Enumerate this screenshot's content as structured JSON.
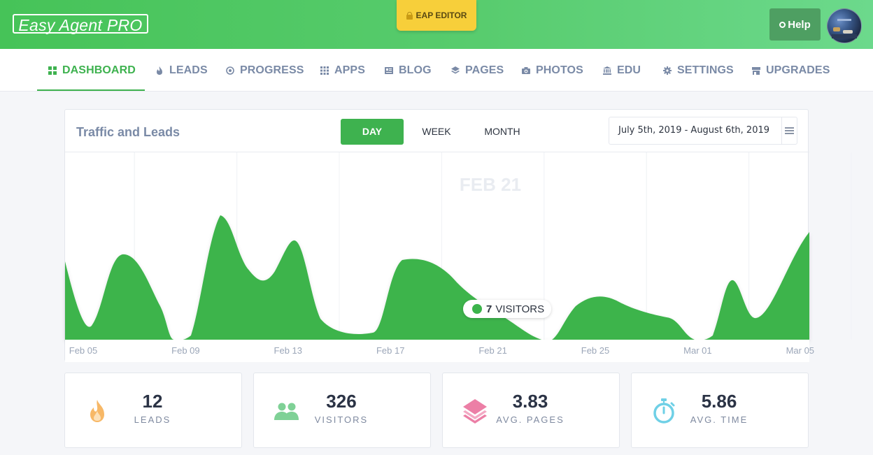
{
  "header": {
    "logo": "Easy Agent PRO",
    "editor_label": "EAP EDITOR",
    "help_label": "Help"
  },
  "nav": {
    "items": [
      {
        "label": "DASHBOARD",
        "icon": "grid-icon",
        "active": true
      },
      {
        "label": "LEADS",
        "icon": "flame-icon"
      },
      {
        "label": "PROGRESS",
        "icon": "target-icon"
      },
      {
        "label": "APPS",
        "icon": "apps-grid-icon"
      },
      {
        "label": "BLOG",
        "icon": "newspaper-icon"
      },
      {
        "label": "PAGES",
        "icon": "layers-icon"
      },
      {
        "label": "PHOTOS",
        "icon": "camera-icon"
      },
      {
        "label": "EDU",
        "icon": "institution-icon"
      },
      {
        "label": "SETTINGS",
        "icon": "gear-icon"
      },
      {
        "label": "UPGRADES",
        "icon": "store-icon"
      }
    ]
  },
  "panel": {
    "title": "Traffic and Leads",
    "tabs": [
      "DAY",
      "WEEK",
      "MONTH"
    ],
    "active_tab": "DAY",
    "date_range": "July 5th, 2019 - August 6th, 2019"
  },
  "chart_data": {
    "type": "area",
    "x_labels": [
      "Feb 05",
      "Feb 09",
      "Feb 13",
      "Feb 17",
      "Feb 21",
      "Feb 25",
      "Mar 01",
      "Mar 05"
    ],
    "hover_date": "FEB 21",
    "tooltip": {
      "value": "7",
      "label": "VISITORS"
    },
    "color": "#3cb44b",
    "grid": "vertical"
  },
  "stats": [
    {
      "value": "12",
      "label": "LEADS",
      "icon": "flame-icon",
      "color": "#f7b867"
    },
    {
      "value": "326",
      "label": "VISITORS",
      "icon": "users-icon",
      "color": "#7fd196"
    },
    {
      "value": "3.83",
      "label": "AVG. PAGES",
      "icon": "layers-icon",
      "color": "#ec7fa6"
    },
    {
      "value": "5.86",
      "label": "AVG. TIME",
      "icon": "stopwatch-icon",
      "color": "#6fd0e6"
    }
  ]
}
